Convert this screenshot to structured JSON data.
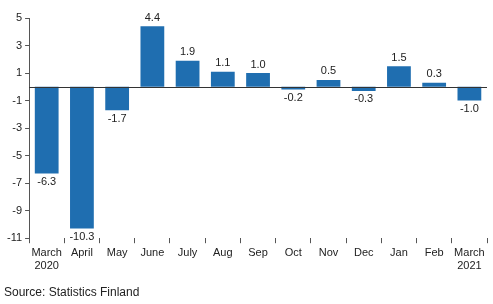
{
  "chart_data": {
    "type": "bar",
    "source": "Source: Statistics Finland",
    "categories": [
      "March 2020",
      "April",
      "May",
      "June",
      "July",
      "Aug",
      "Sep",
      "Oct",
      "Nov",
      "Dec",
      "Jan",
      "Feb",
      "March 2021"
    ],
    "values": [
      -6.3,
      -10.3,
      -1.7,
      4.4,
      1.9,
      1.1,
      1.0,
      -0.2,
      0.5,
      -0.3,
      1.5,
      0.3,
      -1.0
    ],
    "value_labels": [
      "-6.3",
      "-10.3",
      "-1.7",
      "4.4",
      "1.9",
      "1.1",
      "1.0",
      "-0.2",
      "0.5",
      "-0.3",
      "1.5",
      "0.3",
      "-1.0"
    ],
    "color": "#1f6eb0",
    "ylim": [
      -11,
      5
    ],
    "yticks": [
      -11,
      -9,
      -7,
      -5,
      -3,
      -1,
      1,
      3,
      5
    ],
    "grid": false,
    "data_labels": true
  }
}
